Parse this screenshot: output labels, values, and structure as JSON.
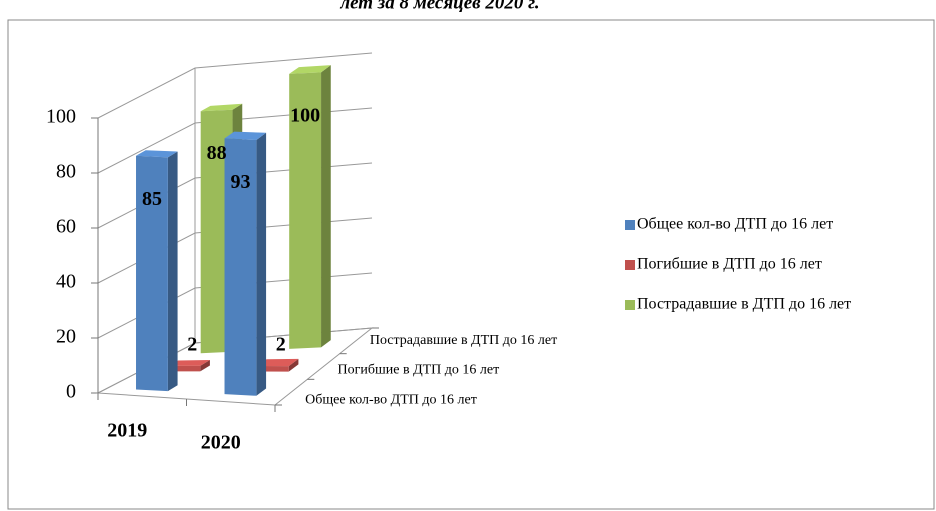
{
  "chart_data": {
    "type": "bar3d",
    "title": "лет за 8 месяцев 2020 г.",
    "categories": [
      "2019",
      "2020"
    ],
    "series": [
      {
        "name": "Общее кол-во ДТП до 16 лет",
        "color": "#4f81bd",
        "values": [
          85,
          93
        ]
      },
      {
        "name": "Погибшие в ДТП до 16 лет",
        "color": "#c0504d",
        "values": [
          2,
          2
        ]
      },
      {
        "name": "Пострадавшие в ДТП до 16 лет",
        "color": "#9bbb59",
        "values": [
          88,
          100
        ]
      }
    ],
    "ylim": [
      0,
      100
    ],
    "yticks": [
      0,
      20,
      40,
      60,
      80,
      100
    ],
    "grid": true,
    "legend": "right"
  }
}
